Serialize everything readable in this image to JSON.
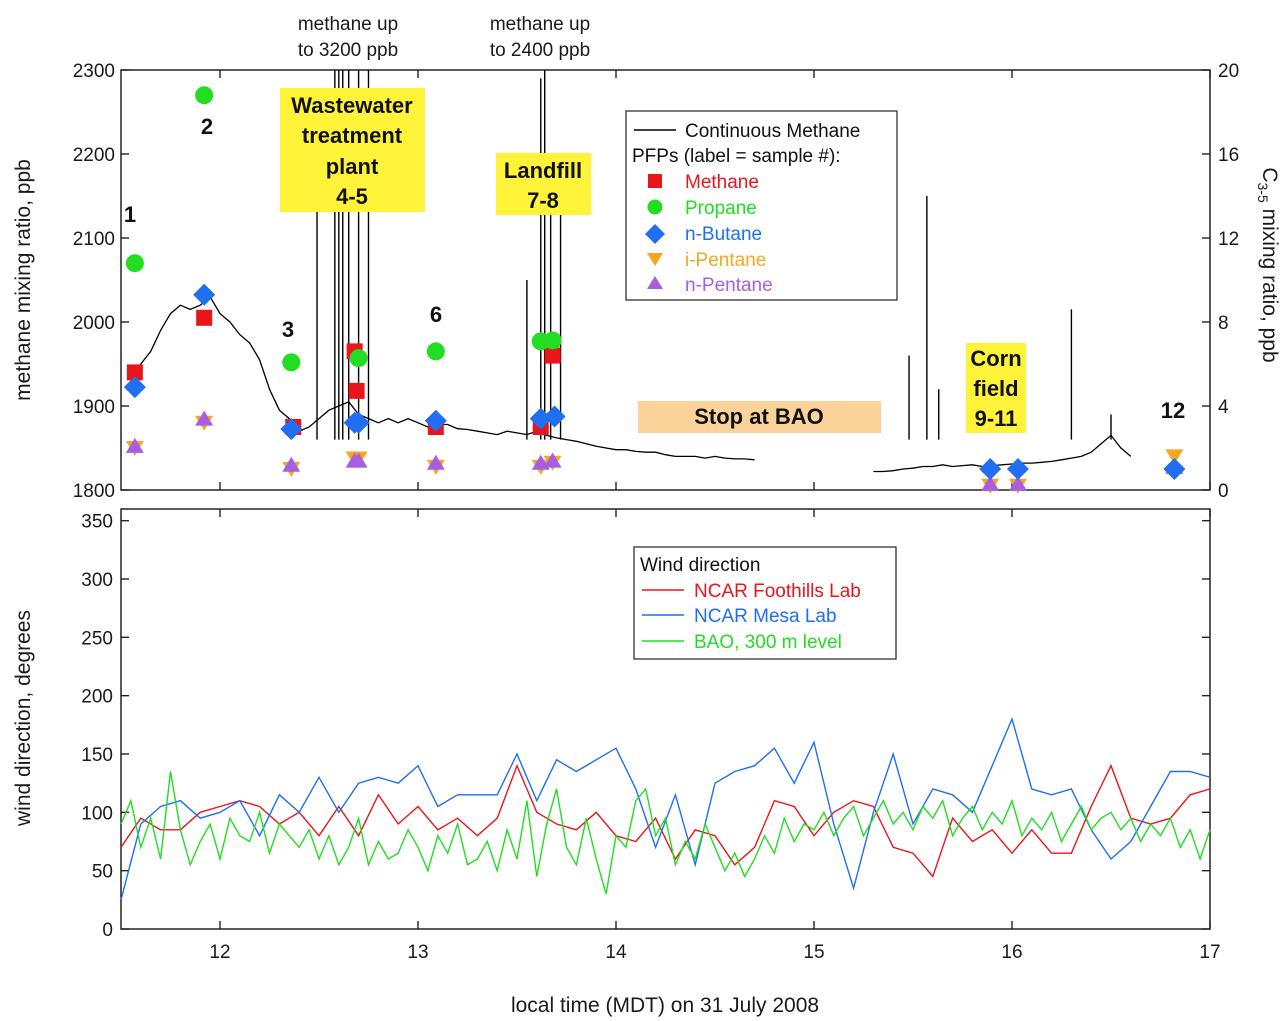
{
  "chart_data": [
    {
      "type": "line",
      "panel": "top",
      "xlabel": "local time (MDT) on 31 July 2008",
      "ylabel": "methane mixing ratio, ppb",
      "ylabel2": "C3-5 mixing ratio, ppb",
      "ylabel2_parts": {
        "main": "C",
        "sub": "3-5",
        "rest": " mixing ratio, ppb"
      },
      "xlim": [
        11.5,
        17
      ],
      "ylim": [
        1800,
        2300
      ],
      "y2lim": [
        0,
        20
      ],
      "x_ticks": [
        "12",
        "13",
        "14",
        "15",
        "16",
        "17"
      ],
      "y_ticks": [
        "1800",
        "1900",
        "2000",
        "2100",
        "2200",
        "2300"
      ],
      "y2_ticks": [
        "0",
        "4",
        "8",
        "12",
        "16",
        "20"
      ],
      "legend": {
        "title": "",
        "items": [
          {
            "label": "Continuous Methane",
            "color": "#000000",
            "marker": "line"
          },
          {
            "label": "PFPs (label = sample #):",
            "color": "#000000",
            "marker": "none"
          },
          {
            "label": "Methane",
            "color": "#e8161b",
            "marker": "square"
          },
          {
            "label": "Propane",
            "color": "#22dd22",
            "marker": "circle"
          },
          {
            "label": "n-Butane",
            "color": "#1f6ff0",
            "marker": "diamond"
          },
          {
            "label": "i-Pentane",
            "color": "#f5a623",
            "marker": "triangle-down"
          },
          {
            "label": "n-Pentane",
            "color": "#a85ee0",
            "marker": "triangle-up"
          }
        ]
      },
      "annotations": {
        "callout1": [
          "methane up",
          "to 3200 ppb"
        ],
        "callout2": [
          "methane up",
          "to 2400 ppb"
        ],
        "boxes": [
          {
            "lines": [
              "Wastewater",
              "treatment",
              "plant",
              "4-5"
            ]
          },
          {
            "lines": [
              "Landfill",
              "7-8"
            ]
          },
          {
            "lines": [
              "Corn",
              "field",
              "9-11"
            ]
          }
        ],
        "stop_label": "Stop at BAO",
        "sample_numbers": [
          "1",
          "2",
          "3",
          "6",
          "12"
        ]
      },
      "series": [
        {
          "name": "Continuous Methane",
          "color": "#000000",
          "segments": [
            {
              "x": [
                11.55,
                11.6,
                11.65,
                11.7,
                11.75,
                11.8,
                11.85,
                11.9,
                11.95,
                12.0,
                12.05,
                12.1,
                12.15,
                12.2,
                12.25,
                12.3,
                12.35,
                12.4,
                12.45,
                12.5,
                12.55,
                12.6,
                12.65,
                12.7,
                12.75,
                12.8,
                12.85,
                12.9,
                12.95,
                13.0,
                13.05,
                13.1,
                13.15,
                13.2,
                13.25,
                13.3,
                13.35,
                13.4,
                13.45,
                13.5,
                13.55,
                13.6,
                13.65,
                13.7,
                13.75,
                13.8,
                13.85,
                13.9,
                13.95,
                14.0,
                14.05,
                14.1,
                14.15,
                14.2,
                14.25,
                14.3,
                14.35,
                14.4,
                14.45,
                14.5,
                14.55,
                14.6,
                14.65,
                14.7
              ],
              "y": [
                1935,
                1950,
                1965,
                1990,
                2010,
                2020,
                2015,
                2020,
                2030,
                2010,
                2000,
                1985,
                1975,
                1955,
                1920,
                1895,
                1885,
                1870,
                1875,
                1885,
                1895,
                1900,
                1905,
                1890,
                1885,
                1880,
                1885,
                1880,
                1885,
                1880,
                1875,
                1878,
                1878,
                1873,
                1872,
                1870,
                1868,
                1866,
                1870,
                1868,
                1866,
                1870,
                1865,
                1862,
                1860,
                1858,
                1855,
                1852,
                1850,
                1848,
                1848,
                1846,
                1845,
                1845,
                1842,
                1840,
                1840,
                1840,
                1838,
                1840,
                1838,
                1837,
                1837,
                1836
              ]
            },
            {
              "x": [
                15.3,
                15.35,
                15.4,
                15.45,
                15.5,
                15.55,
                15.6,
                15.65,
                15.7,
                15.75,
                15.8,
                15.85,
                15.9,
                15.95,
                16.0,
                16.05,
                16.1,
                16.15,
                16.2,
                16.25,
                16.3,
                16.35,
                16.4,
                16.45,
                16.5,
                16.55,
                16.6
              ],
              "y": [
                1822,
                1822,
                1823,
                1825,
                1826,
                1828,
                1828,
                1830,
                1828,
                1829,
                1830,
                1828,
                1829,
                1830,
                1831,
                1832,
                1832,
                1833,
                1834,
                1836,
                1838,
                1840,
                1845,
                1855,
                1865,
                1850,
                1840
              ]
            }
          ]
        },
        {
          "name": "Methane",
          "color": "#e8161b",
          "x": [
            11.57,
            11.92,
            12.37,
            12.68,
            12.69,
            13.09,
            13.62,
            13.68
          ],
          "y": [
            1940,
            2005,
            1875,
            1965,
            1918,
            1875,
            1875,
            1960
          ]
        },
        {
          "name": "Propane",
          "color": "#22dd22",
          "x": [
            11.57,
            11.92,
            12.36,
            12.7,
            13.09,
            13.62,
            13.68
          ],
          "y": [
            2070,
            2270,
            1952,
            1957,
            1965,
            1977,
            1978
          ]
        },
        {
          "name": "n-Butane",
          "color": "#1f6ff0",
          "axis": "right",
          "x": [
            11.57,
            11.92,
            12.36,
            12.68,
            12.7,
            13.09,
            13.62,
            13.69,
            15.89,
            16.03,
            16.82
          ],
          "y": [
            4.9,
            9.3,
            2.9,
            3.2,
            3.2,
            3.3,
            3.4,
            3.5,
            1.0,
            1.0,
            1.0
          ]
        },
        {
          "name": "i-Pentane",
          "color": "#f5a623",
          "axis": "right",
          "x": [
            11.57,
            11.92,
            12.36,
            12.68,
            12.7,
            13.09,
            13.62,
            13.68,
            15.89,
            16.03,
            16.82
          ],
          "y": [
            2.0,
            3.2,
            1.0,
            1.5,
            1.5,
            1.1,
            1.1,
            1.3,
            0.2,
            0.2,
            1.6
          ]
        },
        {
          "name": "n-Pentane",
          "color": "#a85ee0",
          "axis": "right",
          "x": [
            11.57,
            11.92,
            12.36,
            12.68,
            12.7,
            13.09,
            13.62,
            13.68,
            15.89,
            16.03,
            16.82
          ],
          "y": [
            2.1,
            3.4,
            1.2,
            1.4,
            1.4,
            1.3,
            1.3,
            1.4,
            0.3,
            0.3,
            1.1
          ]
        }
      ]
    },
    {
      "type": "line",
      "panel": "bottom",
      "xlabel": "local time (MDT) on 31 July 2008",
      "ylabel": "wind direction, degrees",
      "xlim": [
        11.5,
        17
      ],
      "ylim": [
        0,
        360
      ],
      "x_ticks": [
        "12",
        "13",
        "14",
        "15",
        "16",
        "17"
      ],
      "y_ticks": [
        "0",
        "50",
        "100",
        "150",
        "200",
        "250",
        "300",
        "350"
      ],
      "legend": {
        "title": "Wind direction",
        "items": [
          {
            "label": "NCAR Foothills Lab",
            "color": "#e8161b"
          },
          {
            "label": "NCAR Mesa Lab",
            "color": "#1f6ff0"
          },
          {
            "label": "BAO, 300 m level",
            "color": "#22dd22"
          }
        ]
      },
      "series": [
        {
          "name": "NCAR Foothills Lab",
          "color": "#e8161b",
          "x": [
            11.5,
            11.6,
            11.7,
            11.8,
            11.9,
            12.0,
            12.1,
            12.2,
            12.3,
            12.4,
            12.5,
            12.6,
            12.7,
            12.8,
            12.9,
            13.0,
            13.1,
            13.2,
            13.3,
            13.4,
            13.5,
            13.6,
            13.7,
            13.8,
            13.9,
            14.0,
            14.1,
            14.2,
            14.3,
            14.4,
            14.5,
            14.6,
            14.7,
            14.8,
            14.9,
            15.0,
            15.1,
            15.2,
            15.3,
            15.4,
            15.5,
            15.6,
            15.7,
            15.8,
            15.9,
            16.0,
            16.1,
            16.2,
            16.3,
            16.4,
            16.5,
            16.6,
            16.7,
            16.8,
            16.9,
            17.0
          ],
          "y": [
            70,
            95,
            85,
            85,
            100,
            105,
            110,
            105,
            90,
            100,
            80,
            105,
            80,
            115,
            90,
            105,
            85,
            95,
            80,
            95,
            140,
            100,
            90,
            85,
            100,
            80,
            75,
            95,
            60,
            85,
            80,
            55,
            70,
            110,
            105,
            80,
            100,
            110,
            105,
            70,
            65,
            45,
            95,
            75,
            85,
            65,
            85,
            65,
            65,
            105,
            140,
            95,
            90,
            95,
            115,
            120
          ]
        },
        {
          "name": "NCAR Mesa Lab",
          "color": "#1f6ff0",
          "x": [
            11.5,
            11.6,
            11.7,
            11.8,
            11.9,
            12.0,
            12.1,
            12.2,
            12.3,
            12.4,
            12.5,
            12.6,
            12.7,
            12.8,
            12.9,
            13.0,
            13.1,
            13.2,
            13.3,
            13.4,
            13.5,
            13.6,
            13.7,
            13.8,
            13.9,
            14.0,
            14.1,
            14.2,
            14.3,
            14.4,
            14.5,
            14.6,
            14.7,
            14.8,
            14.9,
            15.0,
            15.1,
            15.2,
            15.3,
            15.4,
            15.5,
            15.6,
            15.7,
            15.8,
            15.9,
            16.0,
            16.1,
            16.2,
            16.3,
            16.4,
            16.5,
            16.6,
            16.7,
            16.8,
            16.9,
            17.0
          ],
          "y": [
            25,
            90,
            105,
            110,
            95,
            100,
            110,
            80,
            115,
            100,
            130,
            100,
            125,
            130,
            125,
            140,
            105,
            115,
            115,
            115,
            150,
            110,
            145,
            135,
            145,
            155,
            120,
            70,
            115,
            55,
            125,
            135,
            140,
            155,
            125,
            160,
            90,
            35,
            100,
            150,
            90,
            120,
            115,
            100,
            140,
            180,
            120,
            115,
            120,
            85,
            60,
            75,
            105,
            135,
            135,
            130
          ]
        },
        {
          "name": "BAO, 300 m level",
          "color": "#22dd22",
          "x": [
            11.5,
            11.55,
            11.6,
            11.65,
            11.7,
            11.75,
            11.8,
            11.85,
            11.9,
            11.95,
            12.0,
            12.05,
            12.1,
            12.15,
            12.2,
            12.25,
            12.3,
            12.35,
            12.4,
            12.45,
            12.5,
            12.55,
            12.6,
            12.65,
            12.7,
            12.75,
            12.8,
            12.85,
            12.9,
            12.95,
            13.0,
            13.05,
            13.1,
            13.15,
            13.2,
            13.25,
            13.3,
            13.35,
            13.4,
            13.45,
            13.5,
            13.55,
            13.6,
            13.65,
            13.7,
            13.75,
            13.8,
            13.85,
            13.9,
            13.95,
            14.0,
            14.05,
            14.1,
            14.15,
            14.2,
            14.25,
            14.3,
            14.35,
            14.4,
            14.45,
            14.5,
            14.55,
            14.6,
            14.65,
            14.7,
            14.75,
            14.8,
            14.85,
            14.9,
            14.95,
            15.0,
            15.05,
            15.1,
            15.15,
            15.2,
            15.25,
            15.3,
            15.35,
            15.4,
            15.45,
            15.5,
            15.55,
            15.6,
            15.65,
            15.7,
            15.75,
            15.8,
            15.85,
            15.9,
            15.95,
            16.0,
            16.05,
            16.1,
            16.15,
            16.2,
            16.25,
            16.3,
            16.35,
            16.4,
            16.45,
            16.5,
            16.55,
            16.6,
            16.65,
            16.7,
            16.75,
            16.8,
            16.85,
            16.9,
            16.95,
            17.0
          ],
          "y": [
            90,
            110,
            70,
            95,
            60,
            135,
            85,
            55,
            75,
            90,
            60,
            95,
            80,
            75,
            100,
            65,
            90,
            80,
            70,
            85,
            60,
            80,
            55,
            70,
            95,
            55,
            75,
            60,
            65,
            85,
            70,
            50,
            80,
            65,
            90,
            55,
            60,
            75,
            50,
            85,
            60,
            110,
            45,
            90,
            120,
            70,
            55,
            95,
            60,
            30,
            80,
            70,
            110,
            120,
            80,
            95,
            55,
            75,
            60,
            90,
            70,
            50,
            65,
            45,
            60,
            80,
            65,
            95,
            75,
            90,
            85,
            100,
            80,
            95,
            105,
            80,
            95,
            110,
            90,
            100,
            85,
            105,
            95,
            110,
            80,
            95,
            105,
            85,
            100,
            90,
            110,
            80,
            95,
            85,
            100,
            75,
            90,
            105,
            85,
            95,
            100,
            85,
            95,
            75,
            90,
            80,
            95,
            70,
            85,
            60,
            85
          ]
        }
      ]
    }
  ]
}
